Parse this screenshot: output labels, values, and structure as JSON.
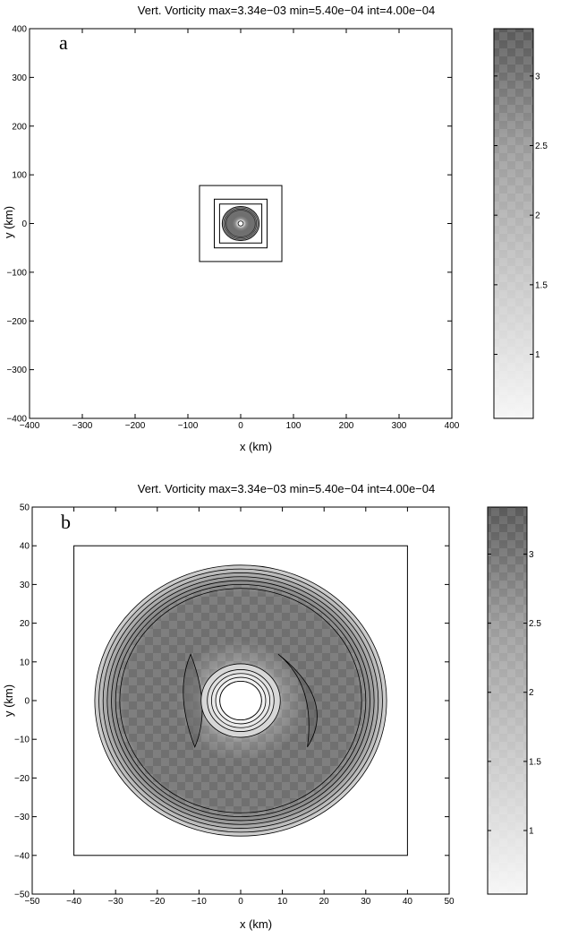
{
  "chart_data": [
    {
      "type": "contour",
      "panel_label": "a",
      "title": "Vert. Vorticity max=3.34e−03 min=5.40e−04 int=4.00e−04",
      "xlabel": "x (km)",
      "ylabel": "y (km)",
      "xlim": [
        -400,
        400
      ],
      "ylim": [
        -400,
        400
      ],
      "xticks": [
        -400,
        -300,
        -200,
        -100,
        0,
        100,
        200,
        300,
        400
      ],
      "yticks": [
        -400,
        -300,
        -200,
        -100,
        0,
        100,
        200,
        300,
        400
      ],
      "xtick_labels": [
        "−400",
        "−300",
        "−200",
        "−100",
        "0",
        "100",
        "200",
        "300",
        "400"
      ],
      "ytick_labels": [
        "−400",
        "−300",
        "−200",
        "−100",
        "0",
        "100",
        "200",
        "300",
        "400"
      ],
      "nested_boxes_km": [
        78,
        50,
        40
      ],
      "vortex": {
        "center": [
          0,
          0
        ],
        "ring_inner_km": 5,
        "ring_outer_km": 35
      },
      "colorbar": {
        "min": 0.54,
        "max": 3.34,
        "ticks": [
          1,
          1.5,
          2,
          2.5,
          3
        ],
        "tick_labels": [
          "1",
          "1.5",
          "2",
          "2.5",
          "3"
        ]
      }
    },
    {
      "type": "contour",
      "panel_label": "b",
      "title": "Vert. Vorticity max=3.34e−03 min=5.40e−04 int=4.00e−04",
      "xlabel": "x (km)",
      "ylabel": "y (km)",
      "xlim": [
        -50,
        50
      ],
      "ylim": [
        -50,
        50
      ],
      "xticks": [
        -50,
        -40,
        -30,
        -20,
        -10,
        0,
        10,
        20,
        30,
        40,
        50
      ],
      "yticks": [
        -50,
        -40,
        -30,
        -20,
        -10,
        0,
        10,
        20,
        30,
        40,
        50
      ],
      "xtick_labels": [
        "−50",
        "−40",
        "−30",
        "−20",
        "−10",
        "0",
        "10",
        "20",
        "30",
        "40",
        "50"
      ],
      "ytick_labels": [
        "−50",
        "−40",
        "−30",
        "−20",
        "−10",
        "0",
        "10",
        "20",
        "30",
        "40",
        "50"
      ],
      "inner_box_km": 40,
      "vortex": {
        "center": [
          0,
          0
        ],
        "outer_contours_km": [
          35,
          34,
          33,
          32,
          31,
          30,
          29
        ],
        "inner_contours_km": [
          5,
          6,
          7,
          8,
          9.5
        ]
      },
      "colorbar": {
        "min": 0.54,
        "max": 3.34,
        "ticks": [
          1,
          1.5,
          2,
          2.5,
          3
        ],
        "tick_labels": [
          "1",
          "1.5",
          "2",
          "2.5",
          "3"
        ]
      }
    }
  ]
}
